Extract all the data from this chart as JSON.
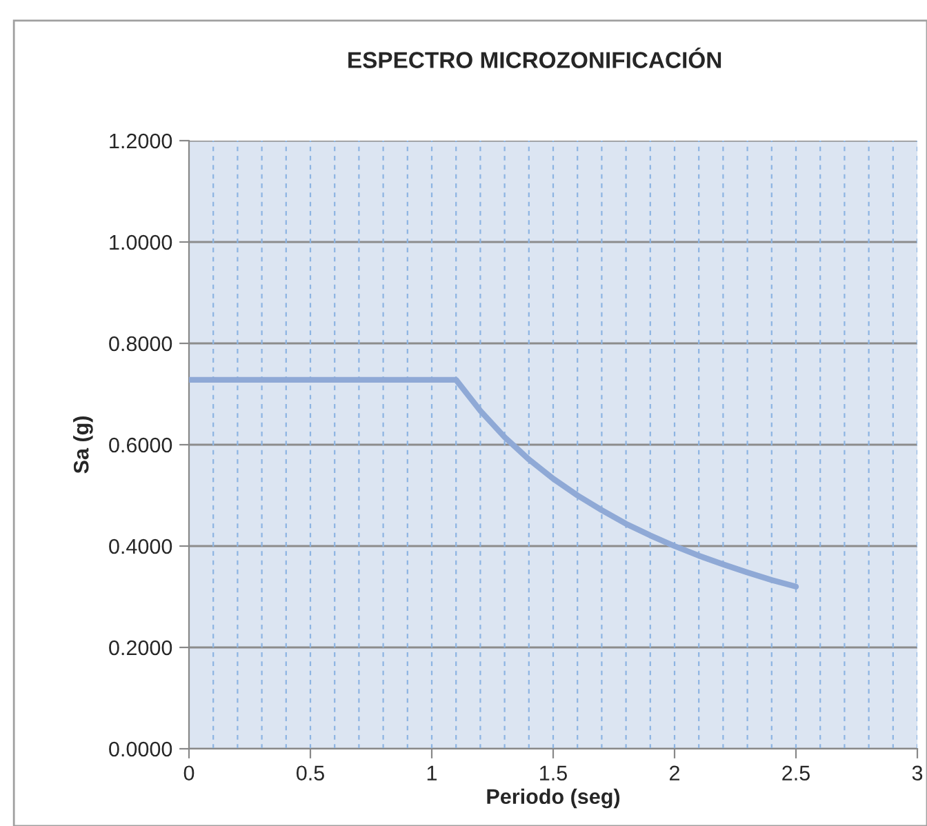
{
  "chart_data": {
    "type": "line",
    "title": "ESPECTRO MICROZONIFICACIÓN",
    "xlabel": "Periodo (seg)",
    "ylabel": "Sa (g)",
    "x": [
      0,
      0.1,
      0.2,
      0.3,
      0.4,
      0.5,
      0.6,
      0.7,
      0.8,
      0.9,
      1.0,
      1.1,
      1.2,
      1.3,
      1.4,
      1.5,
      1.6,
      1.7,
      1.8,
      1.9,
      2.0,
      2.1,
      2.2,
      2.3,
      2.4,
      2.5
    ],
    "series": [
      {
        "color": "#8fa9d6",
        "values": [
          0.728,
          0.728,
          0.728,
          0.728,
          0.728,
          0.728,
          0.728,
          0.728,
          0.728,
          0.728,
          0.728,
          0.728,
          0.667,
          0.615,
          0.571,
          0.533,
          0.5,
          0.471,
          0.444,
          0.421,
          0.4,
          0.381,
          0.364,
          0.348,
          0.333,
          0.32
        ]
      }
    ],
    "xlim": [
      0,
      3
    ],
    "xticks": [
      0,
      0.5,
      1,
      1.5,
      2,
      2.5,
      3
    ],
    "ylim": [
      0,
      1.2
    ],
    "yticks": [
      {
        "value": 0,
        "label": "0.0000"
      },
      {
        "value": 0.2,
        "label": "0.2000"
      },
      {
        "value": 0.4,
        "label": "0.4000"
      },
      {
        "value": 0.6,
        "label": "0.6000"
      },
      {
        "value": 0.8,
        "label": "0.8000"
      },
      {
        "value": 1.0,
        "label": "1.0000"
      },
      {
        "value": 1.2,
        "label": "1.2000"
      }
    ],
    "grid": true,
    "legend": false,
    "marker": "none",
    "line_style": "solid"
  }
}
